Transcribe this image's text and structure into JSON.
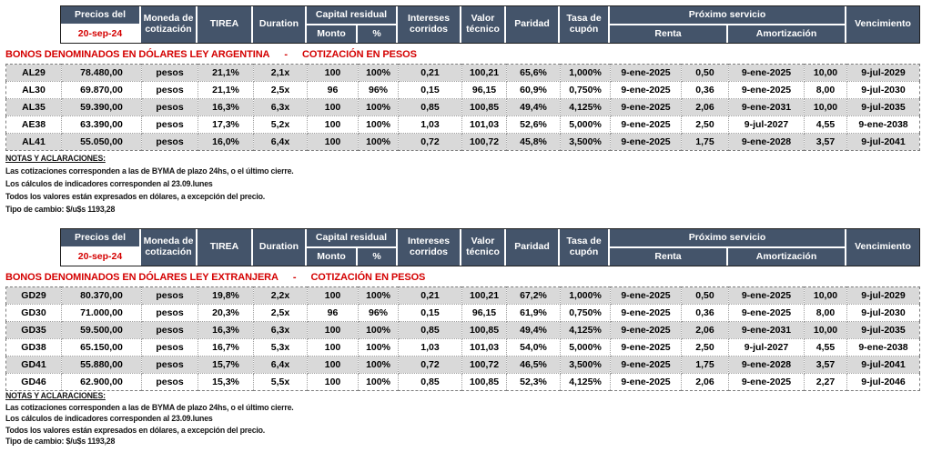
{
  "header": {
    "precios_label": "Precios del",
    "precios_date": "20-sep-24",
    "moneda": "Moneda de cotización",
    "tirea": "TIREA",
    "duration": "Duration",
    "capital": "Capital residual",
    "monto": "Monto",
    "pct": "%",
    "intereses": "Intereses corridos",
    "valor": "Valor técnico",
    "paridad": "Paridad",
    "tasa": "Tasa de cupón",
    "proximo": "Próximo servicio",
    "renta": "Renta",
    "amortizacion": "Amortización",
    "vencimiento": "Vencimiento"
  },
  "sections": [
    {
      "title": "BONOS DENOMINADOS EN DÓLARES LEY ARGENTINA",
      "title_sep": "-",
      "title_sub": "COTIZACIÓN EN PESOS",
      "rows": [
        [
          "AL29",
          "78.480,00",
          "pesos",
          "21,1%",
          "2,1x",
          "100",
          "100%",
          "0,21",
          "100,21",
          "65,6%",
          "1,000%",
          "9-ene-2025",
          "0,50",
          "9-ene-2025",
          "10,00",
          "9-jul-2029"
        ],
        [
          "AL30",
          "69.870,00",
          "pesos",
          "21,1%",
          "2,5x",
          "96",
          "96%",
          "0,15",
          "96,15",
          "60,9%",
          "0,750%",
          "9-ene-2025",
          "0,36",
          "9-ene-2025",
          "8,00",
          "9-jul-2030"
        ],
        [
          "AL35",
          "59.390,00",
          "pesos",
          "16,3%",
          "6,3x",
          "100",
          "100%",
          "0,85",
          "100,85",
          "49,4%",
          "4,125%",
          "9-ene-2025",
          "2,06",
          "9-ene-2031",
          "10,00",
          "9-jul-2035"
        ],
        [
          "AE38",
          "63.390,00",
          "pesos",
          "17,3%",
          "5,2x",
          "100",
          "100%",
          "1,03",
          "101,03",
          "52,6%",
          "5,000%",
          "9-ene-2025",
          "2,50",
          "9-jul-2027",
          "4,55",
          "9-ene-2038"
        ],
        [
          "AL41",
          "55.050,00",
          "pesos",
          "16,0%",
          "6,4x",
          "100",
          "100%",
          "0,72",
          "100,72",
          "45,8%",
          "3,500%",
          "9-ene-2025",
          "1,75",
          "9-ene-2028",
          "3,57",
          "9-jul-2041"
        ]
      ]
    },
    {
      "title": "BONOS DENOMINADOS EN DÓLARES LEY EXTRANJERA",
      "title_sep": "-",
      "title_sub": "COTIZACIÓN EN PESOS",
      "rows": [
        [
          "GD29",
          "80.370,00",
          "pesos",
          "19,8%",
          "2,2x",
          "100",
          "100%",
          "0,21",
          "100,21",
          "67,2%",
          "1,000%",
          "9-ene-2025",
          "0,50",
          "9-ene-2025",
          "10,00",
          "9-jul-2029"
        ],
        [
          "GD30",
          "71.000,00",
          "pesos",
          "20,3%",
          "2,5x",
          "96",
          "96%",
          "0,15",
          "96,15",
          "61,9%",
          "0,750%",
          "9-ene-2025",
          "0,36",
          "9-ene-2025",
          "8,00",
          "9-jul-2030"
        ],
        [
          "GD35",
          "59.500,00",
          "pesos",
          "16,3%",
          "6,3x",
          "100",
          "100%",
          "0,85",
          "100,85",
          "49,4%",
          "4,125%",
          "9-ene-2025",
          "2,06",
          "9-ene-2031",
          "10,00",
          "9-jul-2035"
        ],
        [
          "GD38",
          "65.150,00",
          "pesos",
          "16,7%",
          "5,3x",
          "100",
          "100%",
          "1,03",
          "101,03",
          "54,0%",
          "5,000%",
          "9-ene-2025",
          "2,50",
          "9-jul-2027",
          "4,55",
          "9-ene-2038"
        ],
        [
          "GD41",
          "55.880,00",
          "pesos",
          "15,7%",
          "6,4x",
          "100",
          "100%",
          "0,72",
          "100,72",
          "46,5%",
          "3,500%",
          "9-ene-2025",
          "1,75",
          "9-ene-2028",
          "3,57",
          "9-jul-2041"
        ],
        [
          "GD46",
          "62.900,00",
          "pesos",
          "15,3%",
          "5,5x",
          "100",
          "100%",
          "0,85",
          "100,85",
          "52,3%",
          "4,125%",
          "9-ene-2025",
          "2,06",
          "9-ene-2025",
          "2,27",
          "9-jul-2046"
        ]
      ]
    }
  ],
  "notes": {
    "title": "NOTAS Y ACLARACIONES:",
    "lines": [
      "Las cotizaciones corresponden a las de BYMA de plazo 24hs, o el último cierre.",
      "Los cálculos de indicadores corresponden al 23.09.lunes",
      "Todos los valores están expresados en dólares, a excepción del precio.",
      "Tipo de cambio: $/u$s 1193,28"
    ]
  }
}
